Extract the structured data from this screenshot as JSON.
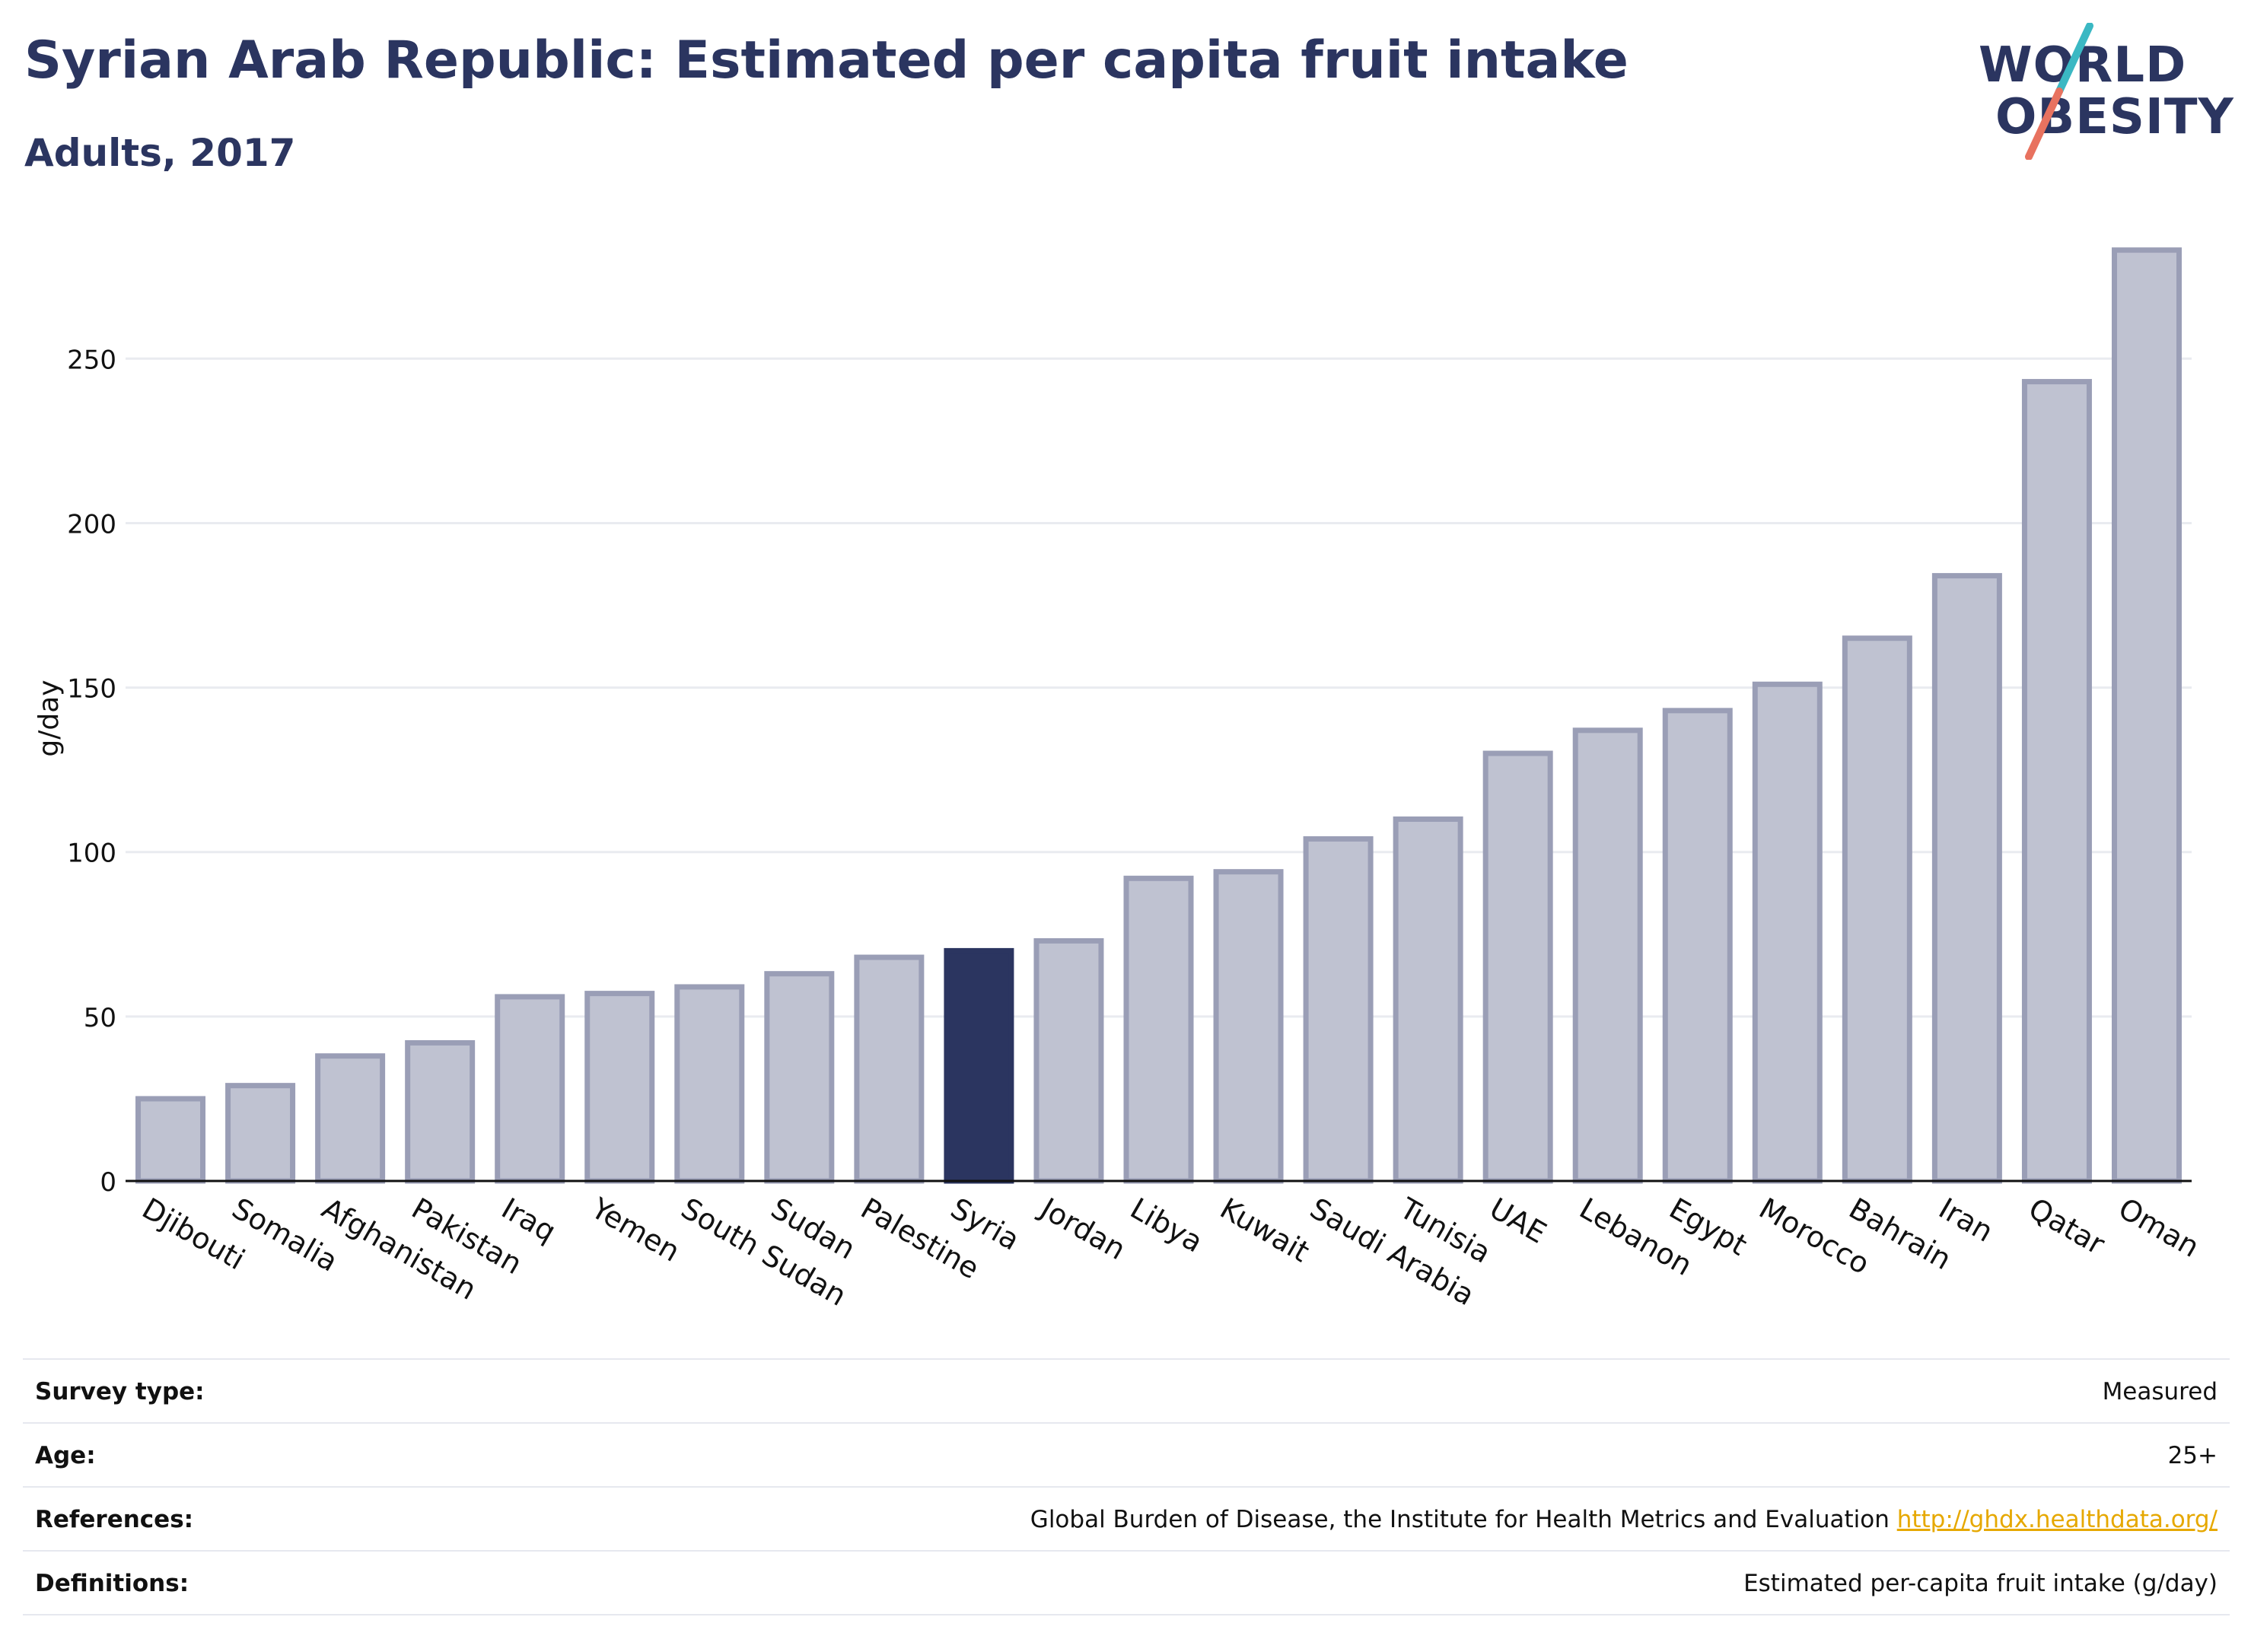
{
  "header": {
    "title": "Syrian Arab Republic: Estimated per capita fruit intake",
    "subtitle": "Adults, 2017"
  },
  "logo": {
    "line1": "WORLD",
    "line2": "OBESITY",
    "colors": {
      "text": "#2b3560",
      "slash_top": "#3bb8c3",
      "slash_bottom": "#e8725f"
    }
  },
  "colors": {
    "bar_fill": "#bfc2d1",
    "bar_stroke": "#9a9eb6",
    "highlight_fill": "#2b3560",
    "grid": "#e9ebf0",
    "axis": "#111111",
    "link": "#e6a800"
  },
  "chart_data": {
    "type": "bar",
    "ylabel": "g/day",
    "ylim": [
      0,
      285
    ],
    "yticks": [
      0,
      50,
      100,
      150,
      200,
      250
    ],
    "grid": true,
    "highlight": "Syria",
    "categories": [
      "Djibouti",
      "Somalia",
      "Afghanistan",
      "Pakistan",
      "Iraq",
      "Yemen",
      "South Sudan",
      "Sudan",
      "Palestine",
      "Syria",
      "Jordan",
      "Libya",
      "Kuwait",
      "Saudi Arabia",
      "Tunisia",
      "UAE",
      "Lebanon",
      "Egypt",
      "Morocco",
      "Bahrain",
      "Iran",
      "Qatar",
      "Oman"
    ],
    "values": [
      25,
      29,
      38,
      42,
      56,
      57,
      59,
      63,
      68,
      70,
      73,
      92,
      94,
      104,
      110,
      130,
      137,
      143,
      151,
      165,
      184,
      243,
      283
    ]
  },
  "meta": [
    {
      "label": "Survey type:",
      "value": "Measured"
    },
    {
      "label": "Age:",
      "value": "25+"
    },
    {
      "label": "References:",
      "value": "Global Burden of Disease, the Institute for Health Metrics and Evaluation",
      "link": "http://ghdx.healthdata.org/"
    },
    {
      "label": "Definitions:",
      "value": "Estimated per-capita fruit intake (g/day)"
    }
  ]
}
